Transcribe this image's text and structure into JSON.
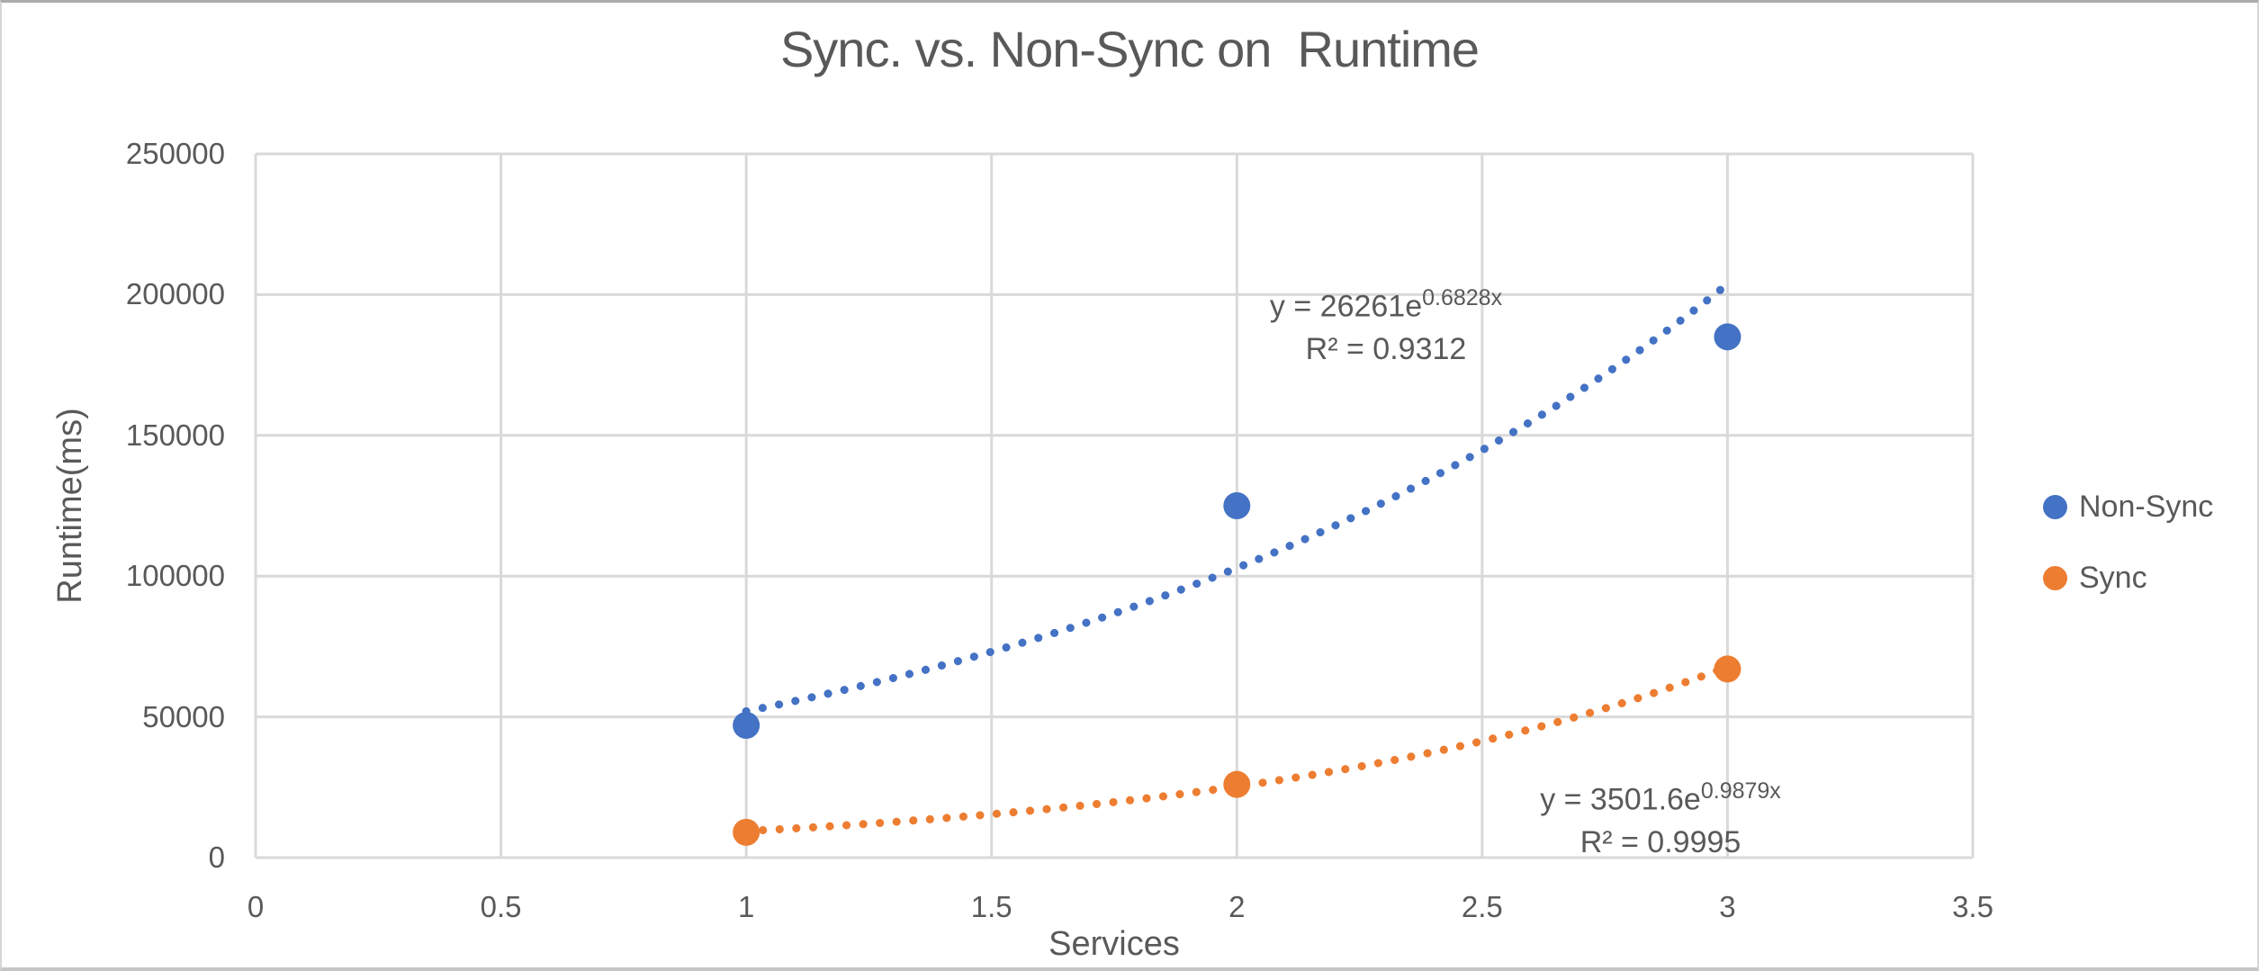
{
  "chart_data": {
    "type": "scatter",
    "title": "Sync. vs. Non-Sync on  Runtime",
    "xlabel": "Services",
    "ylabel": "Runtime(ms)",
    "xlim": [
      0,
      3.5
    ],
    "ylim": [
      0,
      250000
    ],
    "xticks": [
      0,
      0.5,
      1,
      1.5,
      2,
      2.5,
      3,
      3.5
    ],
    "yticks": [
      0,
      50000,
      100000,
      150000,
      200000,
      250000
    ],
    "grid": true,
    "legend_position": "right",
    "colors": {
      "text": "#595959",
      "gridline": "#D9D9D9"
    },
    "series": [
      {
        "name": "Non-Sync",
        "color": "#4472C4",
        "points": [
          {
            "x": 1,
            "y": 47000
          },
          {
            "x": 2,
            "y": 125000
          },
          {
            "x": 3,
            "y": 185000
          }
        ],
        "trendline": {
          "type": "exponential",
          "style": "dotted",
          "a": 26261,
          "b": 0.6828,
          "domain": [
            1,
            3
          ],
          "equation_prefix": "y = 26261e",
          "equation_exponent": "0.6828x",
          "r2_label": "R² = 0.9312"
        }
      },
      {
        "name": "Sync",
        "color": "#ED7D31",
        "points": [
          {
            "x": 1,
            "y": 9000
          },
          {
            "x": 2,
            "y": 26000
          },
          {
            "x": 3,
            "y": 67000
          }
        ],
        "trendline": {
          "type": "exponential",
          "style": "dotted",
          "a": 3501.6,
          "b": 0.9879,
          "domain": [
            1,
            3
          ],
          "equation_prefix": "y = 3501.6e",
          "equation_exponent": "0.9879x",
          "r2_label": "R² = 0.9995"
        }
      }
    ]
  }
}
